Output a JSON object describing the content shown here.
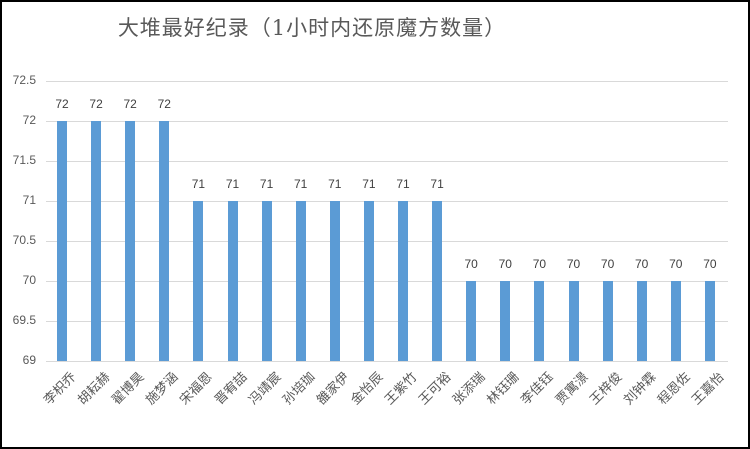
{
  "chart_data": {
    "type": "bar",
    "title": "大堆最好纪录（1小时内还原魔方数量）",
    "xlabel": "",
    "ylabel": "",
    "ylim": [
      69,
      72.5
    ],
    "yticks": [
      "72.5",
      "72",
      "71.5",
      "71",
      "70.5",
      "70",
      "69.5",
      "69"
    ],
    "grid": true,
    "legend": "none",
    "bar_color": "#5b9bd5",
    "categories": [
      "李枳乔",
      "胡耘赫",
      "翟博昊",
      "施梦涵",
      "宋福恩",
      "晋宥喆",
      "冯靖宸",
      "孙培珈",
      "雒家伊",
      "金怡辰",
      "王紫竹",
      "王可裕",
      "张添瑞",
      "林钰珊",
      "李佳钰",
      "贾寓澋",
      "王梓俊",
      "刘钟霖",
      "程恩佐",
      "王嘉怡"
    ],
    "values": [
      72,
      72,
      72,
      72,
      71,
      71,
      71,
      71,
      71,
      71,
      71,
      71,
      70,
      70,
      70,
      70,
      70,
      70,
      70,
      70
    ],
    "data_labels": [
      "72",
      "72",
      "72",
      "72",
      "71",
      "71",
      "71",
      "71",
      "71",
      "71",
      "71",
      "71",
      "70",
      "70",
      "70",
      "70",
      "70",
      "70",
      "70",
      "70"
    ]
  }
}
